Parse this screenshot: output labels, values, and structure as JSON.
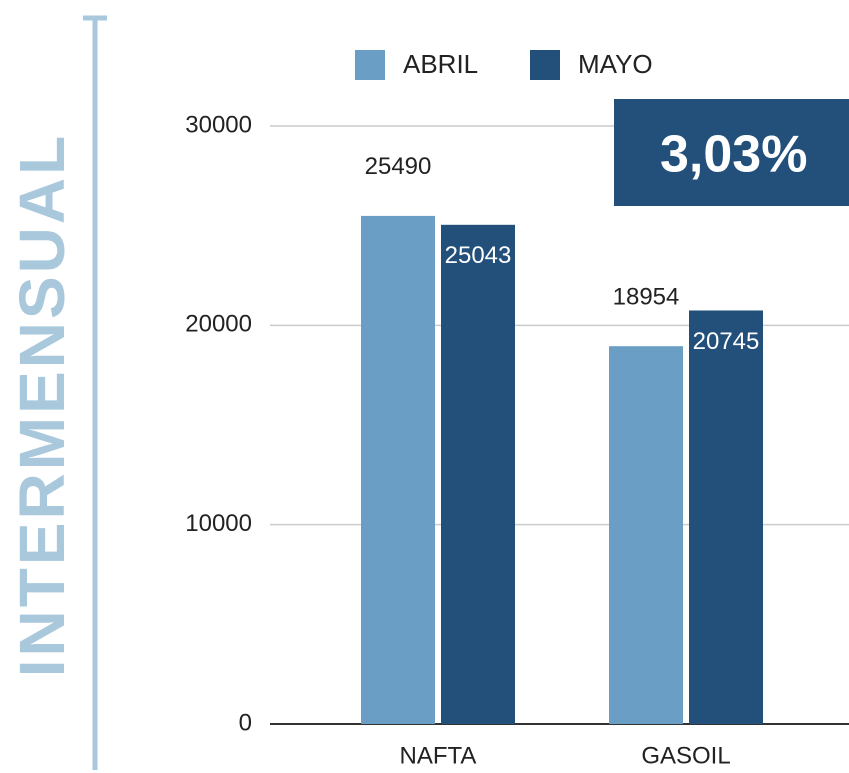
{
  "chart_data": {
    "type": "bar",
    "categories": [
      "NAFTA",
      "GASOIL"
    ],
    "series": [
      {
        "name": "ABRIL",
        "color": "#6a9ec5",
        "values": [
          25490,
          18954
        ]
      },
      {
        "name": "MAYO",
        "color": "#22507a",
        "values": [
          25043,
          20745
        ]
      }
    ],
    "ylim": [
      0,
      30000
    ],
    "yticks": [
      0,
      10000,
      20000,
      30000
    ],
    "grid": true,
    "legend": "top",
    "annotations": [
      "INTERMENSUAL",
      "3,03%"
    ]
  }
}
